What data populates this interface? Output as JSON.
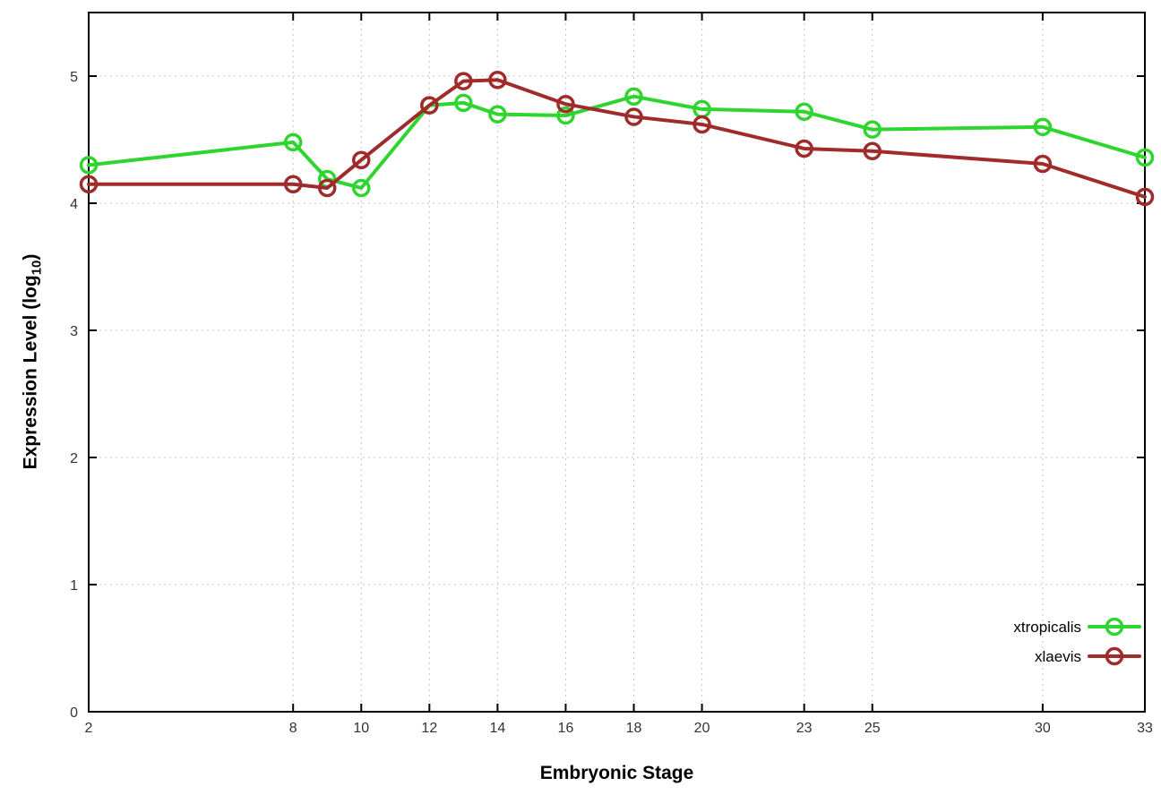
{
  "chart_data": {
    "type": "line",
    "title": "",
    "xlabel": "Embryonic Stage",
    "ylabel": "Expression Level (log10)",
    "ylabel_parts": {
      "text": "Expression Level (log",
      "sub": "10",
      "end": ")"
    },
    "x": [
      2,
      8,
      9,
      10,
      12,
      13,
      14,
      16,
      18,
      20,
      23,
      25,
      30,
      33
    ],
    "xticks": [
      2,
      8,
      10,
      12,
      14,
      16,
      18,
      20,
      23,
      25,
      30,
      33
    ],
    "yticks": [
      0,
      1,
      2,
      3,
      4,
      5
    ],
    "xlim": [
      2,
      33
    ],
    "ylim": [
      0,
      5.5
    ],
    "grid": true,
    "legend_position": "bottom-right-inside",
    "marker_style": "open-circle",
    "series": [
      {
        "name": "xtropicalis",
        "color": "#2fd52f",
        "values": [
          4.3,
          4.48,
          4.19,
          4.12,
          4.77,
          4.79,
          4.7,
          4.69,
          4.84,
          4.74,
          4.72,
          4.58,
          4.6,
          4.36
        ]
      },
      {
        "name": "xlaevis",
        "color": "#9f2b2b",
        "values": [
          4.15,
          4.15,
          4.12,
          4.34,
          4.77,
          4.96,
          4.97,
          4.78,
          4.68,
          4.62,
          4.43,
          4.41,
          4.31,
          4.05
        ]
      }
    ]
  }
}
